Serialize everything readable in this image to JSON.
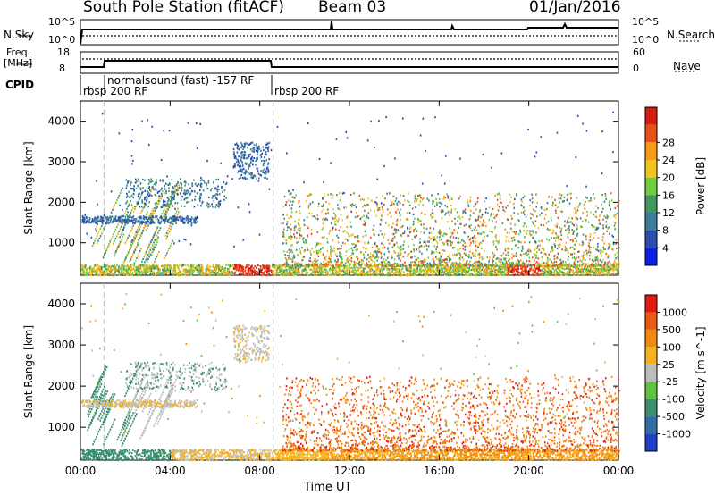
{
  "header": {
    "station": "South Pole Station (fitACF)",
    "beam": "Beam 03",
    "date": "01/Jan/2016"
  },
  "top_panels": {
    "nsky_label": "N.Sky",
    "nsky_ticks": [
      "10^5",
      "10^0"
    ],
    "nsearch_label": "N.Search",
    "nsearch_ticks": [
      "10^5",
      "10^0"
    ],
    "freq_label_1": "Freq.",
    "freq_label_2": "[MHz]",
    "freq_ticks": [
      "18",
      "8"
    ],
    "nave_label": "Nave",
    "nave_ticks": [
      "60",
      "0"
    ],
    "cpid_label": "CPID",
    "cpid_segments": [
      "rbsp 200 RF",
      "normalsound (fast) -157 RF",
      "rbsp 200 RF"
    ]
  },
  "chart_data": [
    {
      "type": "heatmap",
      "title": "",
      "xlabel": "Time UT",
      "ylabel": "Slant Range [km]",
      "x_ticks": [
        "00:00",
        "04:00",
        "08:00",
        "12:00",
        "16:00",
        "20:00",
        "00:00"
      ],
      "y_ticks": [
        1000,
        2000,
        3000,
        4000
      ],
      "ylim": [
        200,
        4500
      ],
      "xlim_hours": [
        0,
        24
      ],
      "colorbar": {
        "label": "Power [dB]",
        "ticks": [
          "4",
          "8",
          "12",
          "16",
          "20",
          "24",
          "28"
        ],
        "colors": [
          "#0a20e6",
          "#2a4fb0",
          "#3a7d9a",
          "#3f9a5e",
          "#6fcf3a",
          "#f2c418",
          "#f59a12",
          "#e8501a",
          "#d81c10"
        ]
      }
    },
    {
      "type": "heatmap",
      "title": "",
      "xlabel": "Time UT",
      "ylabel": "Slant Range [km]",
      "x_ticks": [
        "00:00",
        "04:00",
        "08:00",
        "12:00",
        "16:00",
        "20:00",
        "00:00"
      ],
      "y_ticks": [
        1000,
        2000,
        3000,
        4000
      ],
      "ylim": [
        200,
        4500
      ],
      "xlim_hours": [
        0,
        24
      ],
      "colorbar": {
        "label": "Velocity [m s^-1]",
        "ticks": [
          "1000",
          "500",
          "100",
          "25",
          "-25",
          "-100",
          "-500",
          "-1000"
        ],
        "colors": [
          "#2040c8",
          "#2f6fa8",
          "#3a8f6e",
          "#5ec53a",
          "#bdbdbd",
          "#f6b21a",
          "#f08a10",
          "#e85a14",
          "#e21a12"
        ]
      }
    }
  ]
}
